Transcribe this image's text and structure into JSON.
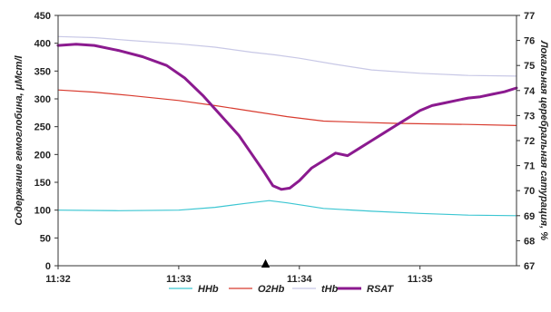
{
  "chart_data": {
    "type": "line",
    "x_ticks": [
      "11:32",
      "11:33",
      "11:34",
      "11:35"
    ],
    "x_range_minutes": [
      0,
      3.8
    ],
    "y_left": {
      "label": "Содержание гемоглобина, μMcm/l",
      "range": [
        0,
        450
      ],
      "ticks": [
        "0",
        "50",
        "100",
        "150",
        "200",
        "250",
        "300",
        "350",
        "400",
        "450"
      ]
    },
    "y_right": {
      "label": "Локальная церебральная сатурация, %",
      "range": [
        67,
        77
      ],
      "ticks": [
        "67",
        "68",
        "69",
        "70",
        "71",
        "72",
        "73",
        "74",
        "75",
        "76",
        "77"
      ]
    },
    "marker": {
      "symbol": "▲",
      "x_minute": 1.72
    },
    "series": [
      {
        "name": "HHb",
        "axis": "left",
        "color": "#3cc6d2",
        "width": 1.2,
        "x": [
          0,
          0.5,
          1.0,
          1.3,
          1.55,
          1.75,
          1.9,
          2.2,
          2.6,
          3.0,
          3.4,
          3.8
        ],
        "y": [
          100,
          99,
          100,
          105,
          112,
          117,
          113,
          103,
          98,
          94,
          91,
          90
        ]
      },
      {
        "name": "O2Hb",
        "axis": "left",
        "color": "#d83a2e",
        "width": 1.2,
        "x": [
          0,
          0.3,
          0.6,
          1.0,
          1.3,
          1.6,
          1.9,
          2.2,
          2.5,
          2.8,
          3.1,
          3.4,
          3.8
        ],
        "y": [
          316,
          312,
          306,
          297,
          288,
          278,
          268,
          260,
          258,
          256,
          255,
          254,
          252
        ]
      },
      {
        "name": "tHb",
        "axis": "left",
        "color": "#c8c8e6",
        "width": 1.2,
        "x": [
          0,
          0.3,
          0.6,
          1.0,
          1.3,
          1.6,
          1.8,
          2.0,
          2.3,
          2.6,
          3.0,
          3.4,
          3.8
        ],
        "y": [
          412,
          410,
          405,
          399,
          393,
          384,
          379,
          373,
          362,
          352,
          346,
          342,
          341
        ]
      },
      {
        "name": "RSAT",
        "axis": "right",
        "color": "#8b1a8f",
        "width": 3,
        "x": [
          0,
          0.15,
          0.3,
          0.5,
          0.7,
          0.9,
          1.05,
          1.2,
          1.35,
          1.5,
          1.6,
          1.7,
          1.78,
          1.85,
          1.92,
          2.0,
          2.1,
          2.2,
          2.3,
          2.4,
          2.5,
          2.6,
          2.7,
          2.8,
          2.9,
          3.0,
          3.1,
          3.2,
          3.3,
          3.4,
          3.5,
          3.6,
          3.7,
          3.8
        ],
        "y": [
          75.8,
          75.85,
          75.8,
          75.6,
          75.35,
          75.0,
          74.5,
          73.8,
          73.0,
          72.2,
          71.5,
          70.8,
          70.2,
          70.05,
          70.1,
          70.4,
          70.9,
          71.2,
          71.5,
          71.4,
          71.7,
          72.0,
          72.3,
          72.6,
          72.9,
          73.2,
          73.4,
          73.5,
          73.6,
          73.7,
          73.75,
          73.85,
          73.95,
          74.1
        ]
      }
    ],
    "legend": {
      "position": "bottom",
      "entries": [
        "HHb",
        "O2Hb",
        "tHb",
        "RSAT"
      ]
    },
    "grid": false
  }
}
